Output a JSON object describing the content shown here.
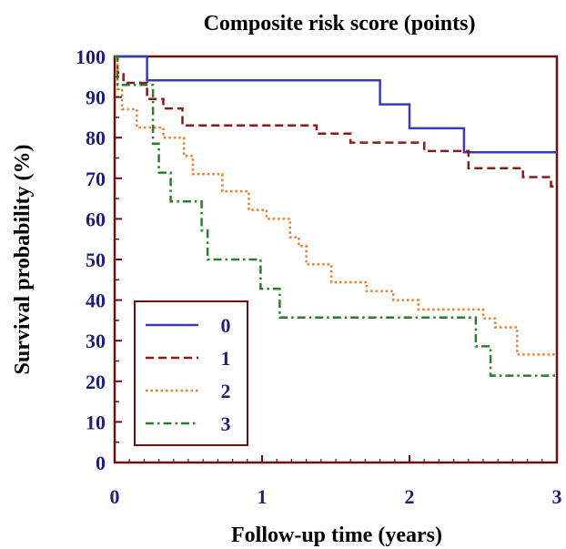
{
  "chart_data": {
    "type": "line",
    "step": true,
    "title": "Composite risk score (points)",
    "xlabel": "Follow-up time (years)",
    "ylabel": "Survival probability (%)",
    "xlim": [
      0,
      3
    ],
    "ylim": [
      0,
      100
    ],
    "x_ticks": [
      "0",
      "1",
      "2",
      "3"
    ],
    "y_ticks": [
      "0",
      "10",
      "20",
      "30",
      "40",
      "50",
      "60",
      "70",
      "80",
      "90",
      "100"
    ],
    "grid": false,
    "legend": "bottom-left",
    "axis_color": "#6b0f0f",
    "text_color": "#1f1f7a",
    "series": [
      {
        "name": "0",
        "color": "#3a3ab5",
        "dash": "solid",
        "points": [
          [
            0,
            100
          ],
          [
            0.22,
            100
          ],
          [
            0.22,
            94.1
          ],
          [
            1.8,
            94.1
          ],
          [
            1.8,
            88.2
          ],
          [
            2.0,
            88.2
          ],
          [
            2.0,
            82.3
          ],
          [
            2.37,
            82.3
          ],
          [
            2.37,
            76.4
          ],
          [
            3.0,
            76.4
          ]
        ]
      },
      {
        "name": "1",
        "color": "#8b1a1a",
        "dash": "dashed",
        "points": [
          [
            0,
            100
          ],
          [
            0.02,
            100
          ],
          [
            0.02,
            96
          ],
          [
            0.06,
            96
          ],
          [
            0.06,
            93.5
          ],
          [
            0.22,
            93.5
          ],
          [
            0.22,
            89.5
          ],
          [
            0.33,
            89.5
          ],
          [
            0.33,
            87.2
          ],
          [
            0.46,
            87.2
          ],
          [
            0.46,
            83
          ],
          [
            1.37,
            83
          ],
          [
            1.37,
            81
          ],
          [
            1.6,
            81
          ],
          [
            1.6,
            78.8
          ],
          [
            2.1,
            78.8
          ],
          [
            2.1,
            76.7
          ],
          [
            2.4,
            76.7
          ],
          [
            2.4,
            72.5
          ],
          [
            2.77,
            72.5
          ],
          [
            2.77,
            70.3
          ],
          [
            2.96,
            70.3
          ],
          [
            2.96,
            68
          ],
          [
            3.0,
            68
          ]
        ]
      },
      {
        "name": "2",
        "color": "#f07d2a",
        "dash": "dotted",
        "points": [
          [
            0,
            100
          ],
          [
            0.02,
            100
          ],
          [
            0.02,
            92
          ],
          [
            0.05,
            92
          ],
          [
            0.05,
            87
          ],
          [
            0.15,
            87
          ],
          [
            0.15,
            82.5
          ],
          [
            0.33,
            82.5
          ],
          [
            0.33,
            80
          ],
          [
            0.47,
            80
          ],
          [
            0.47,
            75.5
          ],
          [
            0.53,
            75.5
          ],
          [
            0.53,
            71
          ],
          [
            0.73,
            71
          ],
          [
            0.73,
            66.8
          ],
          [
            0.91,
            66.8
          ],
          [
            0.91,
            62.2
          ],
          [
            1.03,
            62.2
          ],
          [
            1.03,
            60
          ],
          [
            1.19,
            60
          ],
          [
            1.19,
            55.5
          ],
          [
            1.25,
            55.5
          ],
          [
            1.25,
            53.3
          ],
          [
            1.3,
            53.3
          ],
          [
            1.3,
            48.8
          ],
          [
            1.47,
            48.8
          ],
          [
            1.47,
            44.4
          ],
          [
            1.71,
            44.4
          ],
          [
            1.71,
            42.2
          ],
          [
            1.89,
            42.2
          ],
          [
            1.89,
            40
          ],
          [
            2.06,
            40
          ],
          [
            2.06,
            37.7
          ],
          [
            2.5,
            37.7
          ],
          [
            2.5,
            35.5
          ],
          [
            2.58,
            35.5
          ],
          [
            2.58,
            33.3
          ],
          [
            2.73,
            33.3
          ],
          [
            2.73,
            26.6
          ],
          [
            3.0,
            26.6
          ]
        ]
      },
      {
        "name": "3",
        "color": "#2a7d2a",
        "dash": "dashdot",
        "points": [
          [
            0,
            100
          ],
          [
            0.02,
            100
          ],
          [
            0.02,
            93
          ],
          [
            0.26,
            93
          ],
          [
            0.26,
            78.5
          ],
          [
            0.3,
            78.5
          ],
          [
            0.3,
            71.4
          ],
          [
            0.38,
            71.4
          ],
          [
            0.38,
            64.3
          ],
          [
            0.59,
            64.3
          ],
          [
            0.59,
            57.1
          ],
          [
            0.63,
            57.1
          ],
          [
            0.63,
            50
          ],
          [
            0.99,
            50
          ],
          [
            0.99,
            42.8
          ],
          [
            1.12,
            42.8
          ],
          [
            1.12,
            35.7
          ],
          [
            2.45,
            35.7
          ],
          [
            2.45,
            28.6
          ],
          [
            2.55,
            28.6
          ],
          [
            2.55,
            21.4
          ],
          [
            3.0,
            21.4
          ]
        ]
      }
    ]
  }
}
